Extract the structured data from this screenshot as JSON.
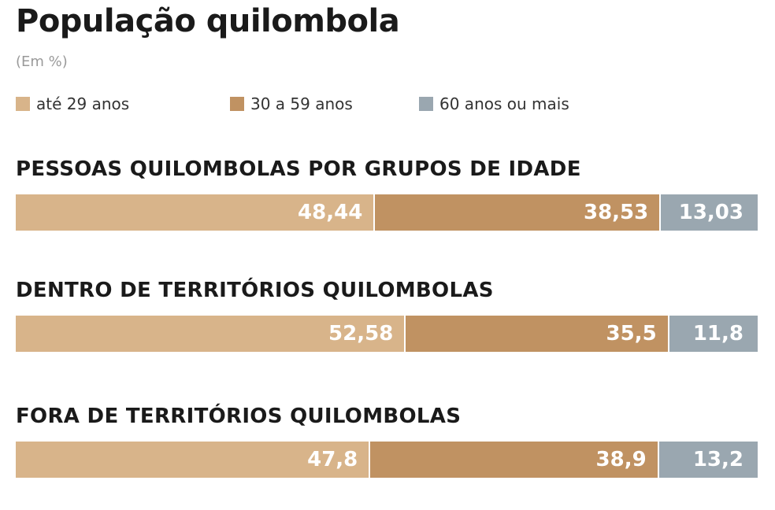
{
  "header": {
    "title": "População quilombola",
    "subtitle": "(Em %)"
  },
  "legend": {
    "items": [
      {
        "label": "até 29 anos",
        "color": "#d8b48a"
      },
      {
        "label": "30 a 59 anos",
        "color": "#c09262"
      },
      {
        "label": "60 anos ou mais",
        "color": "#9aa7b0"
      }
    ]
  },
  "chart_data": {
    "type": "bar",
    "orientation": "horizontal",
    "stacked": true,
    "title": "População quilombola",
    "subtitle": "(Em %)",
    "categories": [
      "PESSOAS QUILOMBOLAS POR GRUPOS DE IDADE",
      "DENTRO DE TERRITÓRIOS QUILOMBOLAS",
      "FORA DE TERRITÓRIOS QUILOMBOLAS"
    ],
    "series": [
      {
        "name": "até 29 anos",
        "color": "#d8b48a",
        "values": [
          48.44,
          52.58,
          47.8
        ],
        "labels": [
          "48,44",
          "52,58",
          "47,8"
        ]
      },
      {
        "name": "30 a 59 anos",
        "color": "#c09262",
        "values": [
          38.53,
          35.5,
          38.9
        ],
        "labels": [
          "38,53",
          "35,5",
          "38,9"
        ]
      },
      {
        "name": "60 anos ou mais",
        "color": "#9aa7b0",
        "values": [
          13.03,
          11.8,
          13.2
        ],
        "labels": [
          "13,03",
          "11,8",
          "13,2"
        ]
      }
    ],
    "xlim": [
      0,
      100
    ],
    "legend_position": "top-left",
    "grid": false
  }
}
